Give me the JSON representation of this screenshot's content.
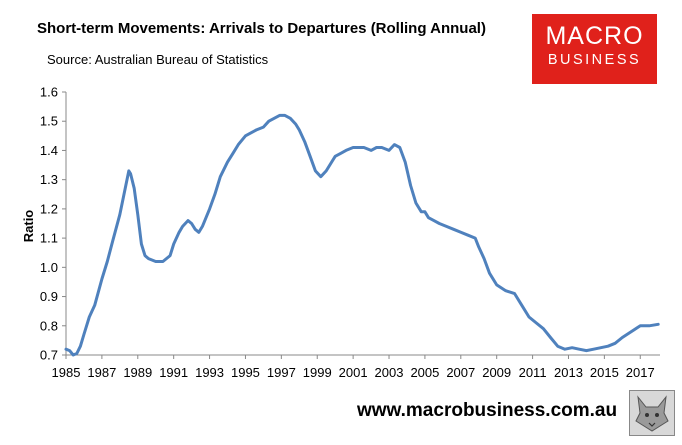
{
  "header": {
    "title": "Short-term Movements: Arrivals to Departures (Rolling Annual)",
    "source": "Source: Australian Bureau of Statistics"
  },
  "logo": {
    "line1": "MACRO",
    "line2": "BUSINESS"
  },
  "footer": {
    "url": "www.macrobusiness.com.au",
    "logo_icon": "wolf-icon"
  },
  "colors": {
    "series": "#4f81bd",
    "logo_bg": "#e0211b"
  },
  "chart_data": {
    "type": "line",
    "title": "Short-term Movements: Arrivals to Departures (Rolling Annual)",
    "xlabel": "",
    "ylabel": "Ratio",
    "xlim": [
      1985,
      2018.1
    ],
    "ylim": [
      0.7,
      1.6
    ],
    "yticks": [
      "0.7",
      "0.8",
      "0.9",
      "1.0",
      "1.1",
      "1.2",
      "1.3",
      "1.4",
      "1.5",
      "1.6"
    ],
    "xticks": [
      "1985",
      "1987",
      "1989",
      "1991",
      "1993",
      "1995",
      "1997",
      "1999",
      "2001",
      "2003",
      "2005",
      "2007",
      "2009",
      "2011",
      "2013",
      "2015",
      "2017"
    ],
    "grid": false,
    "legend": "none",
    "series": [
      {
        "x": [
          1985.0,
          1985.2,
          1985.4,
          1985.6,
          1985.8,
          1986.0,
          1986.3,
          1986.6,
          1987.0,
          1987.3,
          1987.6,
          1988.0,
          1988.2,
          1988.4,
          1988.5,
          1988.6,
          1988.8,
          1989.0,
          1989.2,
          1989.4,
          1989.6,
          1990.0,
          1990.4,
          1990.8,
          1991.0,
          1991.3,
          1991.5,
          1991.8,
          1992.0,
          1992.2,
          1992.4,
          1992.6,
          1992.8,
          1993.0,
          1993.3,
          1993.6,
          1994.0,
          1994.3,
          1994.6,
          1995.0,
          1995.3,
          1995.6,
          1996.0,
          1996.3,
          1996.6,
          1996.9,
          1997.2,
          1997.5,
          1997.8,
          1998.0,
          1998.3,
          1998.6,
          1998.9,
          1999.2,
          1999.5,
          1999.8,
          2000.0,
          2000.3,
          2000.6,
          2001.0,
          2001.3,
          2001.6,
          2002.0,
          2002.3,
          2002.6,
          2003.0,
          2003.3,
          2003.6,
          2003.9,
          2004.2,
          2004.5,
          2004.8,
          2005.0,
          2005.2,
          2005.5,
          2005.8,
          2006.2,
          2006.6,
          2007.0,
          2007.4,
          2007.8,
          2008.0,
          2008.3,
          2008.6,
          2009.0,
          2009.5,
          2010.0,
          2010.4,
          2010.8,
          2011.2,
          2011.6,
          2012.0,
          2012.4,
          2012.8,
          2013.2,
          2013.6,
          2014.0,
          2014.4,
          2014.8,
          2015.2,
          2015.6,
          2016.0,
          2016.5,
          2017.0,
          2017.5,
          2018.0
        ],
        "values": [
          0.72,
          0.715,
          0.7,
          0.705,
          0.73,
          0.77,
          0.83,
          0.87,
          0.96,
          1.02,
          1.09,
          1.18,
          1.24,
          1.3,
          1.33,
          1.32,
          1.27,
          1.18,
          1.08,
          1.04,
          1.03,
          1.02,
          1.02,
          1.04,
          1.08,
          1.12,
          1.14,
          1.16,
          1.15,
          1.13,
          1.12,
          1.14,
          1.17,
          1.2,
          1.25,
          1.31,
          1.36,
          1.39,
          1.42,
          1.45,
          1.46,
          1.47,
          1.48,
          1.5,
          1.51,
          1.52,
          1.52,
          1.51,
          1.49,
          1.47,
          1.43,
          1.38,
          1.33,
          1.31,
          1.33,
          1.36,
          1.38,
          1.39,
          1.4,
          1.41,
          1.41,
          1.41,
          1.4,
          1.41,
          1.41,
          1.4,
          1.42,
          1.41,
          1.36,
          1.28,
          1.22,
          1.19,
          1.19,
          1.17,
          1.16,
          1.15,
          1.14,
          1.13,
          1.12,
          1.11,
          1.1,
          1.07,
          1.03,
          0.98,
          0.94,
          0.92,
          0.91,
          0.87,
          0.83,
          0.81,
          0.79,
          0.76,
          0.73,
          0.72,
          0.725,
          0.72,
          0.715,
          0.72,
          0.725,
          0.73,
          0.74,
          0.76,
          0.78,
          0.8,
          0.8,
          0.805
        ]
      }
    ]
  }
}
